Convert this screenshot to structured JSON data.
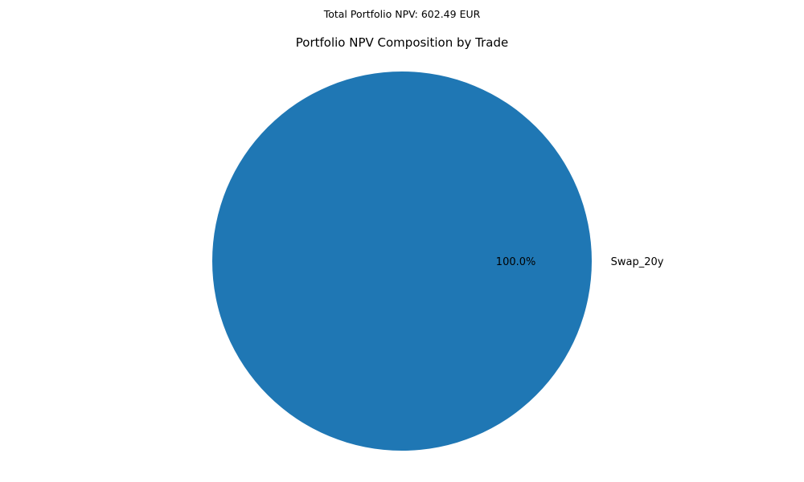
{
  "suptitle": "Total Portfolio NPV: 602.49 EUR",
  "chart_data": {
    "type": "pie",
    "title": "Portfolio NPV Composition by Trade",
    "categories": [
      "Swap_20y"
    ],
    "values": [
      602.49
    ],
    "percent_labels": [
      "100.0%"
    ],
    "colors": [
      "#1f77b4"
    ]
  }
}
